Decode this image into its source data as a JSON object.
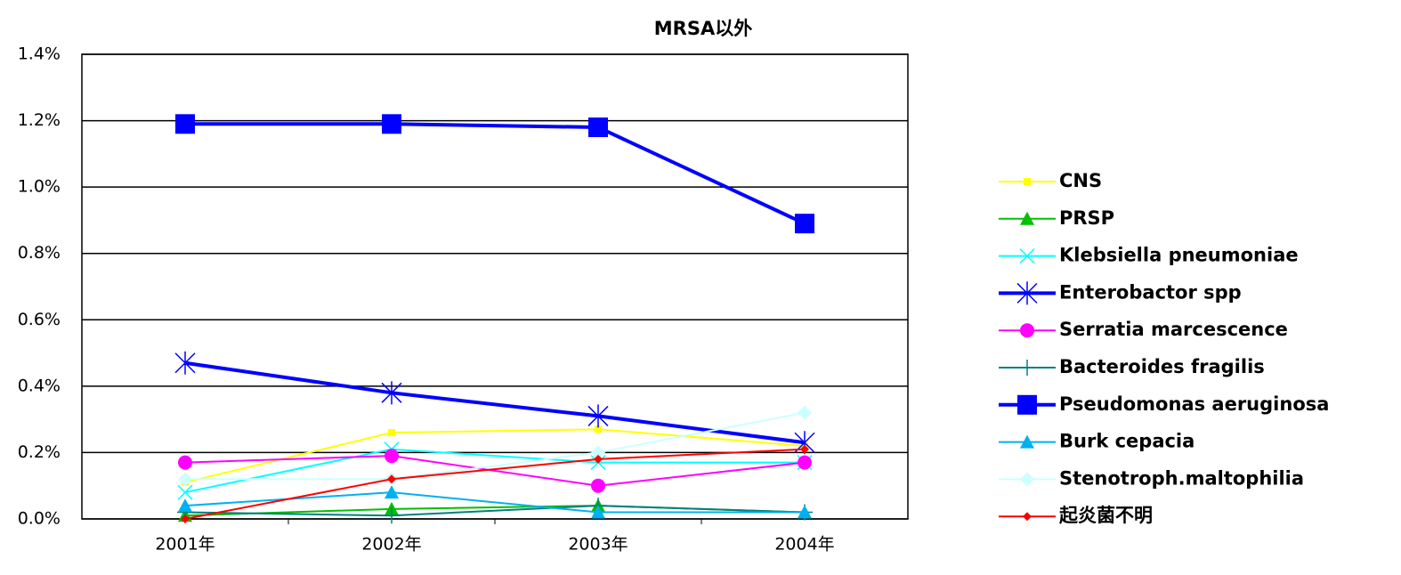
{
  "chart_data": {
    "type": "line",
    "title": "MRSA以外",
    "categories": [
      "2001年",
      "2002年",
      "2003年",
      "2004年"
    ],
    "ylim": [
      0,
      1.4
    ],
    "yticks": [
      {
        "value": 0,
        "label": "0.0%"
      },
      {
        "value": 0.2,
        "label": "0.2%"
      },
      {
        "value": 0.4,
        "label": "0.4%"
      },
      {
        "value": 0.6,
        "label": "0.6%"
      },
      {
        "value": 0.8,
        "label": "0.8%"
      },
      {
        "value": 1.0,
        "label": "1.0%"
      },
      {
        "value": 1.2,
        "label": "1.2%"
      },
      {
        "value": 1.4,
        "label": "1.4%"
      }
    ],
    "grid": true,
    "legend": "right",
    "series": [
      {
        "name": "CNS",
        "color": "#ffff00",
        "marker": "square-small",
        "width": 2,
        "values": [
          0.11,
          0.26,
          0.27,
          0.22
        ]
      },
      {
        "name": "PRSP",
        "color": "#00c000",
        "marker": "triangle",
        "width": 2,
        "values": [
          0.01,
          0.03,
          0.04,
          0.02
        ]
      },
      {
        "name": "Klebsiella pneumoniae",
        "color": "#00ffff",
        "marker": "x",
        "width": 2,
        "values": [
          0.08,
          0.21,
          0.17,
          0.17
        ]
      },
      {
        "name": "Enterobactor spp",
        "color": "#0000ff",
        "marker": "star",
        "width": 4,
        "values": [
          0.47,
          0.38,
          0.31,
          0.23
        ]
      },
      {
        "name": "Serratia marcescence",
        "color": "#ff00ff",
        "marker": "circle",
        "width": 2,
        "values": [
          0.17,
          0.19,
          0.1,
          0.17
        ]
      },
      {
        "name": "Bacteroides fragilis",
        "color": "#008080",
        "marker": "plus",
        "width": 2,
        "values": [
          0.02,
          0.01,
          0.04,
          0.02
        ]
      },
      {
        "name": "Pseudomonas aeruginosa",
        "color": "#0000ff",
        "marker": "square",
        "width": 4,
        "values": [
          1.19,
          1.19,
          1.18,
          0.89
        ]
      },
      {
        "name": "Burk cepacia",
        "color": "#00b0f0",
        "marker": "triangle",
        "width": 2,
        "values": [
          0.04,
          0.08,
          0.02,
          0.02
        ]
      },
      {
        "name": "Stenotroph.maltophilia",
        "color": "#ccffff",
        "marker": "diamond",
        "width": 2,
        "values": [
          0.12,
          0.12,
          0.2,
          0.32
        ]
      },
      {
        "name": "起炎菌不明",
        "color": "#ff0000",
        "marker": "diamond-small",
        "width": 2,
        "values": [
          0.0,
          0.12,
          0.18,
          0.21
        ]
      }
    ]
  }
}
